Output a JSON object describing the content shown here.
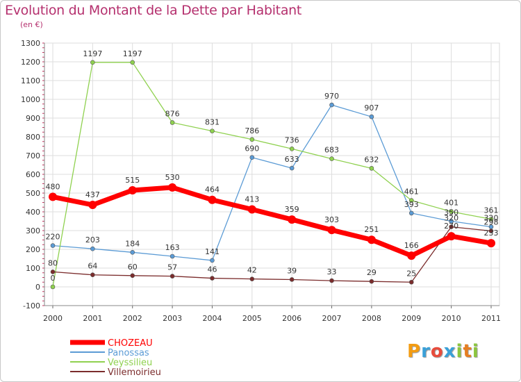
{
  "header": {
    "title": "Evolution du Montant de la Dette par Habitant",
    "subtitle": "(en €)"
  },
  "logo": {
    "letters": [
      "P",
      "r",
      "o",
      "x",
      "i",
      "t",
      "i"
    ],
    "colors": [
      "#f39c12",
      "#3aa0d8",
      "#e74c3c",
      "#3aa0d8",
      "#8cc63f",
      "#e67e22",
      "#8cc63f"
    ]
  },
  "chart_data": {
    "type": "line",
    "title": "Evolution du Montant de la Dette par Habitant",
    "subtitle": "(en €)",
    "xlabel": "",
    "ylabel": "",
    "x": [
      "2000",
      "2001",
      "2002",
      "2003",
      "2004",
      "2005",
      "2006",
      "2007",
      "2008",
      "2009",
      "2010",
      "2011"
    ],
    "ylim": [
      -100,
      1300
    ],
    "yticks": [
      -100,
      0,
      100,
      200,
      300,
      400,
      500,
      600,
      700,
      800,
      900,
      1000,
      1100,
      1200,
      1300
    ],
    "grid": true,
    "legend_position": "bottom-left",
    "series": [
      {
        "name": "CHOZEAU",
        "color": "#ff0000",
        "values": [
          480,
          437,
          515,
          530,
          464,
          413,
          359,
          303,
          251,
          166,
          270,
          233
        ],
        "labels": [
          "480",
          "437",
          "515",
          "530",
          "464",
          "413",
          "359",
          "303",
          "251",
          "166",
          "270",
          "233"
        ]
      },
      {
        "name": "Panossas",
        "color": "#5b9bd5",
        "values": [
          220,
          203,
          184,
          163,
          141,
          690,
          633,
          970,
          907,
          393,
          350,
          320
        ],
        "labels": [
          "220",
          "203",
          "184",
          "163",
          "141",
          "690",
          "633",
          "970",
          "907",
          "393",
          "350",
          "320"
        ]
      },
      {
        "name": "Veyssilieu",
        "color": "#8fd14f",
        "values": [
          0,
          1197,
          1197,
          876,
          831,
          786,
          736,
          683,
          632,
          461,
          401,
          361
        ],
        "labels": [
          "0",
          "1197",
          "1197",
          "876",
          "831",
          "786",
          "736",
          "683",
          "632",
          "461",
          "401",
          "361"
        ]
      },
      {
        "name": "Villemoirieu",
        "color": "#7b2c2c",
        "values": [
          80,
          64,
          60,
          57,
          46,
          42,
          39,
          33,
          29,
          25,
          320,
          298
        ],
        "labels": [
          "80",
          "64",
          "60",
          "57",
          "46",
          "42",
          "39",
          "33",
          "29",
          "25",
          "320",
          "298"
        ]
      }
    ]
  }
}
